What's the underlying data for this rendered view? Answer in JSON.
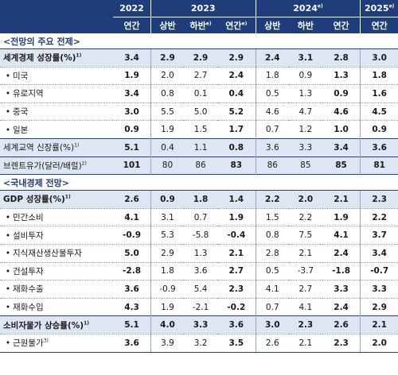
{
  "header": {
    "years": [
      "2022",
      "2023",
      "2024",
      "2025"
    ],
    "year_notes": {
      "2024": "e)",
      "2025": "e)"
    },
    "sub": {
      "y2022": "연간",
      "y2023_h1": "상반",
      "y2023_h2": "하반",
      "y2023_h2_note": "e)",
      "y2023_year": "연간",
      "y2023_year_note": "e)",
      "y2024_h1": "상반",
      "y2024_h2": "하반",
      "y2024_year": "연간",
      "y2025": "연간"
    }
  },
  "sections": [
    {
      "title": "<전망의 주요 전제>",
      "rows": [
        {
          "label": "세계경제 성장률(%)",
          "note": "1)",
          "style": "bold",
          "bullet": false,
          "values": [
            "3.4",
            "2.9",
            "2.9",
            "2.9",
            "2.4",
            "3.1",
            "2.8",
            "3.0"
          ]
        },
        {
          "label": "미국",
          "note": "",
          "style": "sub",
          "bullet": true,
          "values": [
            "1.9",
            "2.0",
            "2.7",
            "2.4",
            "1.8",
            "0.9",
            "1.3",
            "1.8"
          ]
        },
        {
          "label": "유로지역",
          "note": "",
          "style": "sub",
          "bullet": true,
          "values": [
            "3.4",
            "0.8",
            "0.1",
            "0.4",
            "0.5",
            "1.3",
            "0.9",
            "1.6"
          ]
        },
        {
          "label": "중국",
          "note": "",
          "style": "sub",
          "bullet": true,
          "values": [
            "3.0",
            "5.5",
            "5.0",
            "5.2",
            "4.6",
            "4.7",
            "4.6",
            "4.5"
          ]
        },
        {
          "label": "일본",
          "note": "",
          "style": "sub",
          "bullet": true,
          "values": [
            "0.9",
            "1.9",
            "1.5",
            "1.7",
            "0.7",
            "1.2",
            "1.0",
            "0.9"
          ]
        },
        {
          "label": "세계교역 신장률(%)",
          "note": "1)",
          "style": "plain",
          "bullet": false,
          "values": [
            "5.1",
            "0.4",
            "1.1",
            "0.8",
            "3.6",
            "3.3",
            "3.4",
            "3.6"
          ]
        },
        {
          "label": "브렌트유가(달러/배럴)",
          "note": "2)",
          "style": "plain",
          "bullet": false,
          "values": [
            "101",
            "80",
            "86",
            "83",
            "86",
            "85",
            "85",
            "81"
          ]
        }
      ]
    },
    {
      "title": "<국내경제 전망>",
      "rows": [
        {
          "label": "GDP 성장률(%)",
          "note": "1)",
          "style": "bold",
          "bullet": false,
          "values": [
            "2.6",
            "0.9",
            "1.8",
            "1.4",
            "2.2",
            "2.0",
            "2.1",
            "2.3"
          ]
        },
        {
          "label": "민간소비",
          "note": "",
          "style": "sub",
          "bullet": true,
          "values": [
            "4.1",
            "3.1",
            "0.7",
            "1.9",
            "1.5",
            "2.2",
            "1.9",
            "2.2"
          ]
        },
        {
          "label": "설비투자",
          "note": "",
          "style": "sub",
          "bullet": true,
          "values": [
            "-0.9",
            "5.3",
            "-5.8",
            "-0.4",
            "0.8",
            "7.5",
            "4.1",
            "3.7"
          ]
        },
        {
          "label": "지식재산생산물투자",
          "note": "",
          "style": "sub",
          "bullet": true,
          "values": [
            "5.0",
            "2.9",
            "1.3",
            "2.1",
            "2.8",
            "2.1",
            "2.4",
            "3.4"
          ]
        },
        {
          "label": "건설투자",
          "note": "",
          "style": "sub",
          "bullet": true,
          "values": [
            "-2.8",
            "1.8",
            "3.6",
            "2.7",
            "0.5",
            "-3.7",
            "-1.8",
            "-0.7"
          ]
        },
        {
          "label": "재화수출",
          "note": "",
          "style": "sub",
          "bullet": true,
          "values": [
            "3.6",
            "-0.9",
            "5.4",
            "2.3",
            "4.1",
            "2.7",
            "3.3",
            "3.3"
          ]
        },
        {
          "label": "재화수입",
          "note": "",
          "style": "sub",
          "bullet": true,
          "values": [
            "4.3",
            "1.9",
            "-2.1",
            "-0.2",
            "0.7",
            "4.1",
            "2.4",
            "2.9"
          ]
        },
        {
          "label": "소비자물가 상승률(%)",
          "note": "1)",
          "style": "bold",
          "bullet": false,
          "values": [
            "5.1",
            "4.0",
            "3.3",
            "3.6",
            "3.0",
            "2.3",
            "2.6",
            "2.1"
          ]
        },
        {
          "label": "근원물가",
          "note": "3)",
          "style": "sub",
          "bullet": true,
          "values": [
            "3.6",
            "3.9",
            "3.2",
            "3.5",
            "2.6",
            "2.1",
            "2.3",
            "2.0"
          ]
        }
      ]
    }
  ],
  "colors": {
    "header_bg": "#1f3d7a",
    "shade": "#dde6f2",
    "section_title": "#1f3d7a"
  },
  "bullet_glyph": "•"
}
